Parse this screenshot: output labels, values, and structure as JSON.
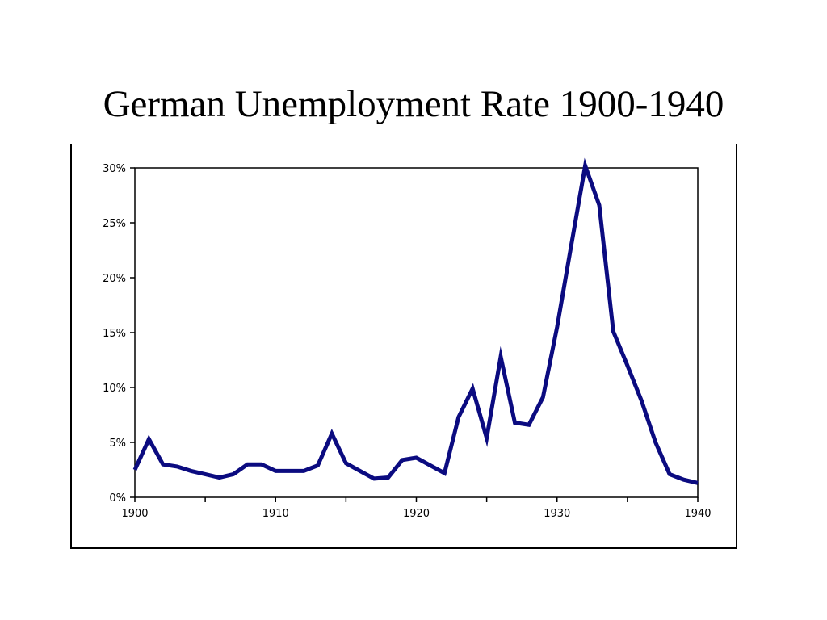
{
  "slide": {
    "title": "German Unemployment Rate 1900-1940"
  },
  "chart_data": {
    "type": "line",
    "title": "",
    "xlabel": "",
    "ylabel": "",
    "xlim": [
      1900,
      1940
    ],
    "ylim": [
      0,
      30
    ],
    "x_ticks": [
      1900,
      1910,
      1920,
      1930,
      1940
    ],
    "x_tick_labels": [
      "1900",
      "1910",
      "1920",
      "1930",
      "1940"
    ],
    "y_ticks": [
      0,
      5,
      10,
      15,
      20,
      25,
      30
    ],
    "y_tick_labels": [
      "0%",
      "5%",
      "10%",
      "15%",
      "20%",
      "25%",
      "30%"
    ],
    "grid": false,
    "legend": "none",
    "series": [
      {
        "color": "#0b0b80",
        "x": [
          1900,
          1901,
          1902,
          1903,
          1904,
          1905,
          1906,
          1907,
          1908,
          1909,
          1910,
          1911,
          1912,
          1913,
          1914,
          1915,
          1916,
          1917,
          1918,
          1919,
          1920,
          1921,
          1922,
          1923,
          1924,
          1925,
          1926,
          1927,
          1928,
          1929,
          1930,
          1931,
          1932,
          1933,
          1934,
          1935,
          1936,
          1937,
          1938,
          1939,
          1940
        ],
        "values": [
          2.5,
          5.3,
          3.0,
          2.8,
          2.4,
          2.1,
          1.8,
          2.1,
          3.0,
          3.0,
          2.4,
          2.4,
          2.4,
          2.9,
          5.8,
          3.1,
          2.4,
          1.7,
          1.8,
          3.4,
          3.6,
          2.9,
          2.2,
          7.3,
          9.9,
          5.4,
          12.8,
          6.8,
          6.6,
          9.1,
          15.5,
          22.9,
          30.2,
          26.6,
          15.1,
          12.0,
          8.8,
          5.0,
          2.1,
          1.6,
          1.3
        ]
      }
    ]
  }
}
